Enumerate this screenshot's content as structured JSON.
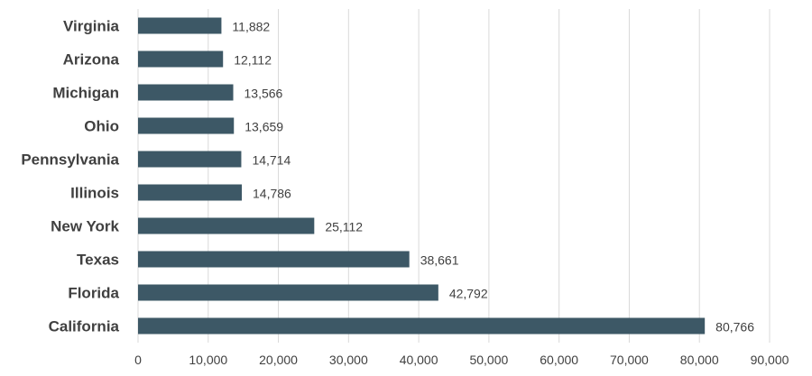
{
  "chart_data": {
    "type": "bar",
    "orientation": "horizontal",
    "title": "",
    "xlabel": "",
    "ylabel": "",
    "categories": [
      "Virginia",
      "Arizona",
      "Michigan",
      "Ohio",
      "Pennsylvania",
      "Illinois",
      "New York",
      "Texas",
      "Florida",
      "California"
    ],
    "values": [
      11882,
      12112,
      13566,
      13659,
      14714,
      14786,
      25112,
      38661,
      42792,
      80766
    ],
    "value_labels": [
      "11,882",
      "12,112",
      "13,566",
      "13,659",
      "14,714",
      "14,786",
      "25,112",
      "38,661",
      "42,792",
      "80,766"
    ],
    "xlim": [
      0,
      90000
    ],
    "x_ticks": [
      0,
      10000,
      20000,
      30000,
      40000,
      50000,
      60000,
      70000,
      80000,
      90000
    ],
    "x_tick_labels": [
      "0",
      "10,000",
      "20,000",
      "30,000",
      "40,000",
      "50,000",
      "60,000",
      "70,000",
      "80,000",
      "90,000"
    ],
    "grid": true,
    "bar_color": "#3d5866",
    "grid_color": "#d9d9d9"
  }
}
